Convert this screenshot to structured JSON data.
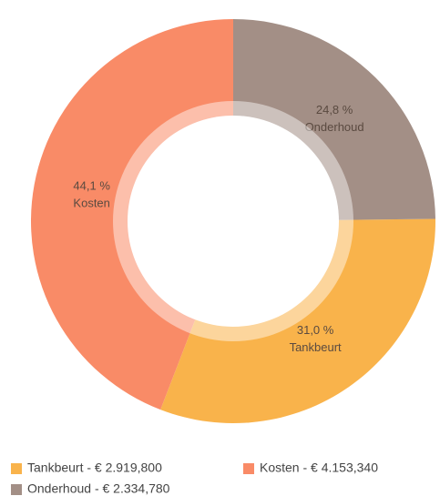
{
  "chart_data": {
    "type": "donut",
    "categories": [
      "Tankbeurt",
      "Kosten",
      "Onderhoud"
    ],
    "values": [
      31.0,
      44.1,
      24.8
    ],
    "value_labels": [
      "31,0 %",
      "44,1 %",
      "24,8 %"
    ],
    "colors": [
      "#f9b34b",
      "#f98b67",
      "#a38f86"
    ],
    "legend_labels": [
      "Tankbeurt - € 2.919,800",
      "Kosten - € 4.153,340",
      "Onderhoud - € 2.334,780"
    ],
    "legend": "bottom"
  }
}
